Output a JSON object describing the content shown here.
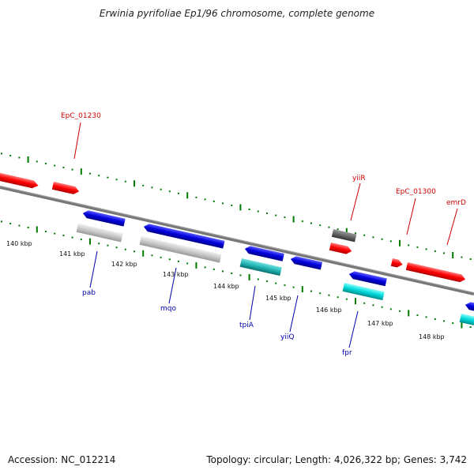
{
  "title": "Erwinia pyrifoliae Ep1/96 chromosome, complete genome",
  "footer": {
    "accession": "Accession: NC_012214",
    "summary": "Topology: circular; Length: 4,026,322 bp; Genes: 3,742"
  },
  "colors": {
    "forward_gene": "#ff0000",
    "reverse_gene": "#0000dd",
    "rna_or_misc": "#00d8d8",
    "pseudo": "#666666",
    "feature_grey": "#c8c8c8",
    "tick": "#007a00",
    "label_forward": "#cc0000",
    "label_reverse": "#0000aa"
  },
  "axis": {
    "kbp_labels": [
      "140 kbp",
      "141 kbp",
      "142 kbp",
      "143 kbp",
      "144 kbp",
      "145 kbp",
      "146 kbp",
      "147 kbp",
      "148 kbp"
    ]
  },
  "gene_labels": {
    "forward": [
      "EpC_01230",
      "yiiR",
      "EpC_01300",
      "emrD"
    ],
    "reverse": [
      "pab",
      "mqo",
      "tpiA",
      "yiiQ",
      "fpr"
    ]
  }
}
